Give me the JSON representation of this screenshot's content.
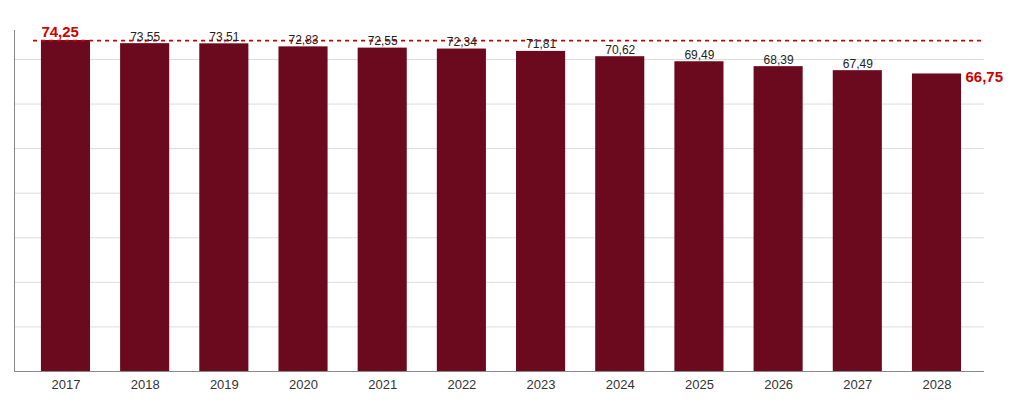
{
  "chart_data": {
    "type": "bar",
    "categories": [
      "2017",
      "2018",
      "2019",
      "2020",
      "2021",
      "2022",
      "2023",
      "2024",
      "2025",
      "2026",
      "2027",
      "2028"
    ],
    "values": [
      74.25,
      73.55,
      73.51,
      72.83,
      72.55,
      72.34,
      71.81,
      70.62,
      69.49,
      68.39,
      67.49,
      66.75
    ],
    "value_labels": [
      "74,25",
      "73,55",
      "73,51",
      "72,83",
      "72,55",
      "72,34",
      "71,81",
      "70,62",
      "69,49",
      "68,39",
      "67,49",
      "66,75"
    ],
    "data_labels": true,
    "data_label_colors": [
      "#cc0000",
      "#222222",
      "#222222",
      "#222222",
      "#222222",
      "#222222",
      "#222222",
      "#222222",
      "#222222",
      "#222222",
      "#222222",
      "#cc0000"
    ],
    "color": "#6b0a1e",
    "ylim": [
      0,
      76.5
    ],
    "yticks": [
      10,
      20,
      30,
      40,
      50,
      60,
      70
    ],
    "grid": true,
    "tick_labels": "x",
    "reference_line": {
      "value": 74.25,
      "color": "#cc0000"
    }
  }
}
